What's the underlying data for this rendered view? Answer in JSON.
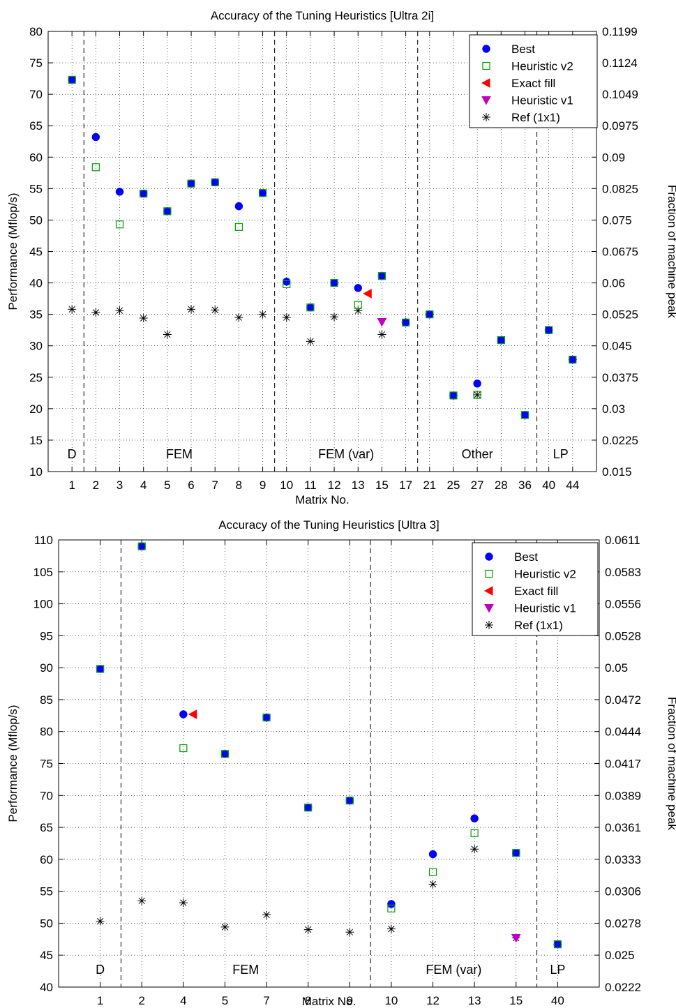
{
  "chart_data": [
    {
      "type": "scatter",
      "title": "Accuracy of the Tuning Heuristics [Ultra 2i]",
      "xlabel": "Matrix No.",
      "ylabel": "Performance (Mflop/s)",
      "y2label": "Fraction of machine peak",
      "ylim": [
        10,
        80
      ],
      "yticks": [
        10,
        15,
        20,
        25,
        30,
        35,
        40,
        45,
        50,
        55,
        60,
        65,
        70,
        75,
        80
      ],
      "y2ticks": [
        "0.015",
        "0.0225",
        "0.03",
        "0.0375",
        "0.045",
        "0.0525",
        "0.06",
        "0.0675",
        "0.075",
        "0.0825",
        "0.09",
        "0.0975",
        "0.1049",
        "0.1124",
        "0.1199"
      ],
      "grid": true,
      "legend_position": "top-right",
      "categories": [
        "1",
        "2",
        "3",
        "4",
        "5",
        "6",
        "7",
        "8",
        "9",
        "10",
        "11",
        "12",
        "13",
        "15",
        "17",
        "21",
        "25",
        "27",
        "28",
        "36",
        "40",
        "44"
      ],
      "groups": [
        {
          "label": "D",
          "start": 0,
          "end": 0
        },
        {
          "label": "FEM",
          "start": 1,
          "end": 8
        },
        {
          "label": "FEM (var)",
          "start": 9,
          "end": 14
        },
        {
          "label": "Other",
          "start": 15,
          "end": 19
        },
        {
          "label": "LP",
          "start": 20,
          "end": 21
        }
      ],
      "series": [
        {
          "name": "Best",
          "marker": "circle",
          "color": "#0000ff",
          "values": [
            72.3,
            63.2,
            54.5,
            54.2,
            51.4,
            55.8,
            56.0,
            52.2,
            54.3,
            40.2,
            36.1,
            40.0,
            39.2,
            41.1,
            33.7,
            35.0,
            22.1,
            24.0,
            30.9,
            19.0,
            32.5,
            27.8
          ]
        },
        {
          "name": "Heuristic v2",
          "marker": "square",
          "color": "#00a000",
          "values": [
            72.3,
            58.4,
            49.3,
            54.2,
            51.4,
            55.8,
            56.0,
            48.9,
            54.3,
            39.8,
            36.1,
            40.0,
            36.5,
            41.1,
            33.7,
            35.0,
            22.1,
            22.2,
            30.9,
            19.0,
            32.5,
            27.8
          ]
        },
        {
          "name": "Exact fill",
          "marker": "triangle-left",
          "color": "#ff0000",
          "values": [
            null,
            null,
            null,
            null,
            null,
            null,
            null,
            null,
            null,
            null,
            null,
            null,
            38.3,
            null,
            null,
            null,
            null,
            null,
            null,
            null,
            null,
            null
          ]
        },
        {
          "name": "Heuristic v1",
          "marker": "triangle-down",
          "color": "#c000c0",
          "values": [
            null,
            null,
            null,
            null,
            null,
            null,
            null,
            null,
            null,
            null,
            null,
            null,
            null,
            33.8,
            null,
            null,
            null,
            null,
            null,
            null,
            null,
            null
          ]
        },
        {
          "name": "Ref (1x1)",
          "marker": "asterisk",
          "color": "#000000",
          "values": [
            35.8,
            35.3,
            35.6,
            34.4,
            31.8,
            35.8,
            35.7,
            34.5,
            35.0,
            34.5,
            30.7,
            34.6,
            35.6,
            31.8,
            33.8,
            35.0,
            22.1,
            22.2,
            30.9,
            19.0,
            32.5,
            27.8
          ]
        }
      ]
    },
    {
      "type": "scatter",
      "title": "Accuracy of the Tuning Heuristics [Ultra 3]",
      "xlabel": "Matrix No.",
      "ylabel": "Performance (Mflop/s)",
      "y2label": "Fraction of machine peak",
      "ylim": [
        40,
        110
      ],
      "yticks": [
        40,
        45,
        50,
        55,
        60,
        65,
        70,
        75,
        80,
        85,
        90,
        95,
        100,
        105,
        110
      ],
      "y2ticks": [
        "0.0222",
        "0.025",
        "0.0278",
        "0.0306",
        "0.0333",
        "0.0361",
        "0.0389",
        "0.0417",
        "0.0444",
        "0.0472",
        "0.05",
        "0.0528",
        "0.0556",
        "0.0583",
        "0.0611"
      ],
      "grid": true,
      "legend_position": "top-right",
      "categories": [
        "1",
        "2",
        "4",
        "5",
        "7",
        "8",
        "9",
        "10",
        "12",
        "13",
        "15",
        "40"
      ],
      "groups": [
        {
          "label": "D",
          "start": 0,
          "end": 0
        },
        {
          "label": "FEM",
          "start": 1,
          "end": 6
        },
        {
          "label": "FEM (var)",
          "start": 7,
          "end": 10
        },
        {
          "label": "LP",
          "start": 11,
          "end": 11
        }
      ],
      "series": [
        {
          "name": "Best",
          "marker": "circle",
          "color": "#0000ff",
          "values": [
            89.8,
            109.0,
            82.7,
            76.5,
            82.2,
            68.1,
            69.2,
            53.0,
            60.8,
            66.4,
            61.0,
            46.7
          ]
        },
        {
          "name": "Heuristic v2",
          "marker": "square",
          "color": "#00a000",
          "values": [
            89.8,
            109.0,
            77.4,
            76.5,
            82.2,
            68.1,
            69.2,
            52.3,
            58.0,
            64.1,
            61.0,
            46.7
          ]
        },
        {
          "name": "Exact fill",
          "marker": "triangle-left",
          "color": "#ff0000",
          "values": [
            null,
            null,
            82.7,
            null,
            null,
            null,
            null,
            null,
            null,
            null,
            null,
            null
          ]
        },
        {
          "name": "Heuristic v1",
          "marker": "triangle-down",
          "color": "#c000c0",
          "values": [
            null,
            null,
            null,
            null,
            null,
            null,
            null,
            null,
            null,
            null,
            47.7,
            null
          ]
        },
        {
          "name": "Ref (1x1)",
          "marker": "asterisk",
          "color": "#000000",
          "values": [
            50.3,
            53.5,
            53.2,
            49.4,
            51.3,
            49.0,
            48.6,
            49.1,
            56.1,
            61.6,
            47.7,
            46.7
          ]
        }
      ]
    }
  ]
}
